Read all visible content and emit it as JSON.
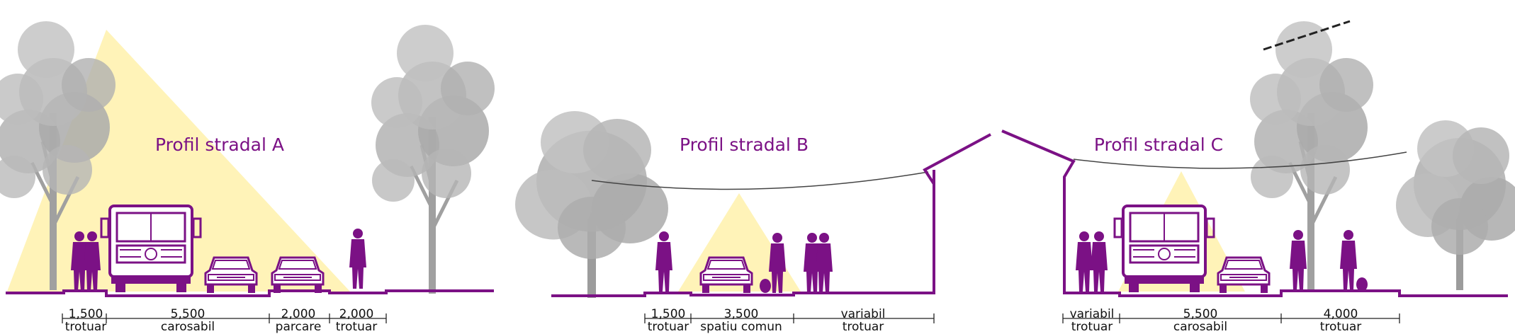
{
  "colors": {
    "accent": "#7b1185",
    "light_cone": "#fff3b8",
    "tree": "#a9a9a9",
    "tree_dark": "#8e8e8e",
    "dimension_line": "#222222"
  },
  "profiles": [
    {
      "title": "Profil stradal A",
      "dimensions": [
        {
          "value": "1,500",
          "label": "trotuar"
        },
        {
          "value": "5,500",
          "label": "carosabil"
        },
        {
          "value": "2,000",
          "label": "parcare"
        },
        {
          "value": "2,000",
          "label": "trotuar"
        }
      ]
    },
    {
      "title": "Profil stradal B",
      "dimensions": [
        {
          "value": "1,500",
          "label": "trotuar"
        },
        {
          "value": "3,500",
          "label": "spatiu comun"
        },
        {
          "value": "variabil",
          "label": "trotuar"
        }
      ]
    },
    {
      "title": "Profil stradal C",
      "dimensions": [
        {
          "value": "variabil",
          "label": "trotuar"
        },
        {
          "value": "5,500",
          "label": "carosabil"
        },
        {
          "value": "4,000",
          "label": "trotuar"
        }
      ]
    }
  ]
}
